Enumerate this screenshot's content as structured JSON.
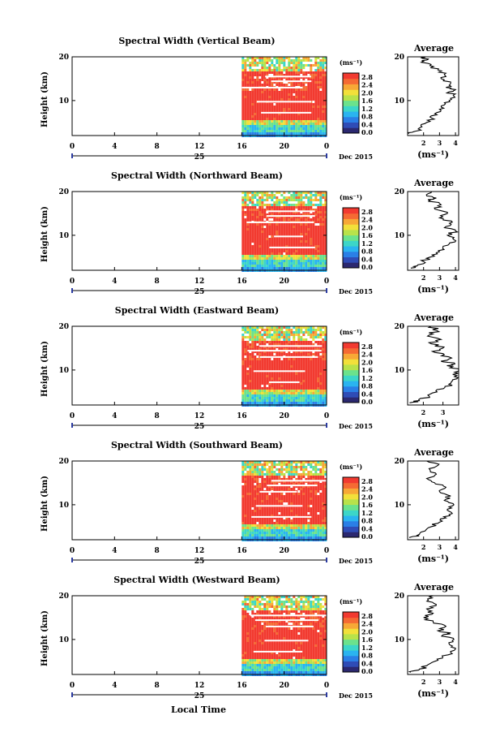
{
  "figure": {
    "xlabel": "Local Time",
    "day_label": "25",
    "month_label": "Dec 2015"
  },
  "colorbar_colors": [
    "#2b2870",
    "#2f4cb6",
    "#2a7fe6",
    "#2ab4f0",
    "#3cd6c8",
    "#6be28c",
    "#b8e24a",
    "#f2e03a",
    "#f7a836",
    "#f56a33",
    "#f23a30"
  ],
  "chart_data": [
    {
      "type": "heatmap",
      "title": "Spectral Width (Vertical Beam)",
      "ylabel": "Height (km)",
      "xticks": [
        "0",
        "4",
        "8",
        "12",
        "16",
        "20",
        "0"
      ],
      "yticks": [
        "10",
        "20"
      ],
      "xlim": [
        0,
        24
      ],
      "ylim": [
        2,
        20
      ],
      "data_start_hour": 16,
      "colorbar": {
        "unit": "(ms⁻¹)",
        "ticks": [
          "2.8",
          "2.4",
          "2.0",
          "1.6",
          "1.2",
          "0.8",
          "0.4",
          "0.0"
        ]
      },
      "average": {
        "title": "Average",
        "xlabel": "(ms⁻¹)",
        "xticks": [
          "2",
          "3",
          "4"
        ],
        "xlim": [
          1,
          4.2
        ],
        "yticks": [
          "10",
          "20"
        ],
        "profile": [
          [
            1.1,
            2.5
          ],
          [
            1.5,
            3
          ],
          [
            1.9,
            4
          ],
          [
            2.2,
            5
          ],
          [
            2.5,
            6
          ],
          [
            2.7,
            7
          ],
          [
            3.0,
            8
          ],
          [
            3.3,
            9
          ],
          [
            3.6,
            10
          ],
          [
            3.9,
            11
          ],
          [
            3.6,
            12
          ],
          [
            4.0,
            12.5
          ],
          [
            3.4,
            13
          ],
          [
            3.7,
            14
          ],
          [
            3.1,
            15
          ],
          [
            3.3,
            16
          ],
          [
            2.9,
            17
          ],
          [
            2.4,
            18
          ],
          [
            2.0,
            19
          ],
          [
            2.3,
            19.5
          ],
          [
            1.8,
            20
          ]
        ]
      }
    },
    {
      "type": "heatmap",
      "title": "Spectral Width (Northward Beam)",
      "ylabel": "Height (km)",
      "xticks": [
        "0",
        "4",
        "8",
        "12",
        "16",
        "20",
        "0"
      ],
      "yticks": [
        "10",
        "20"
      ],
      "xlim": [
        0,
        24
      ],
      "ylim": [
        2,
        20
      ],
      "data_start_hour": 16,
      "colorbar": {
        "unit": "(ms⁻¹)",
        "ticks": [
          "2.8",
          "2.4",
          "2.0",
          "1.6",
          "1.2",
          "0.8",
          "0.4",
          "0.0"
        ]
      },
      "average": {
        "title": "Average",
        "xlabel": "(ms⁻¹)",
        "xticks": [
          "2",
          "3",
          "4"
        ],
        "xlim": [
          1,
          4.2
        ],
        "yticks": [
          "10",
          "20"
        ],
        "profile": [
          [
            1.2,
            2.5
          ],
          [
            1.6,
            3
          ],
          [
            2.0,
            4
          ],
          [
            2.4,
            5
          ],
          [
            2.8,
            6
          ],
          [
            3.2,
            7
          ],
          [
            3.6,
            8
          ],
          [
            3.9,
            9
          ],
          [
            3.5,
            10
          ],
          [
            4.0,
            11
          ],
          [
            3.4,
            12
          ],
          [
            3.8,
            13
          ],
          [
            3.0,
            14
          ],
          [
            3.5,
            15
          ],
          [
            2.7,
            16
          ],
          [
            3.1,
            17
          ],
          [
            2.4,
            18
          ],
          [
            2.8,
            18.5
          ],
          [
            2.2,
            19
          ],
          [
            2.5,
            20
          ]
        ]
      }
    },
    {
      "type": "heatmap",
      "title": "Spectral Width (Eastward Beam)",
      "ylabel": "Height (km)",
      "xticks": [
        "0",
        "4",
        "8",
        "12",
        "16",
        "20",
        "0"
      ],
      "yticks": [
        "10",
        "20"
      ],
      "xlim": [
        0,
        24
      ],
      "ylim": [
        2,
        20
      ],
      "data_start_hour": 16,
      "colorbar": {
        "unit": "(ms⁻¹)",
        "ticks": [
          "2.8",
          "2.4",
          "2.0",
          "1.6",
          "1.2",
          "0.8",
          "0.4",
          "0.0"
        ]
      },
      "average": {
        "title": "Average",
        "xlabel": "(ms⁻¹)",
        "xticks": [
          "2",
          "3"
        ],
        "xlim": [
          1.2,
          3.8
        ],
        "yticks": [
          "10",
          "20"
        ],
        "profile": [
          [
            1.3,
            2.5
          ],
          [
            1.8,
            3
          ],
          [
            2.3,
            4
          ],
          [
            2.7,
            5
          ],
          [
            3.1,
            6
          ],
          [
            3.4,
            7
          ],
          [
            3.7,
            8
          ],
          [
            3.5,
            9
          ],
          [
            3.8,
            10
          ],
          [
            3.2,
            11
          ],
          [
            3.6,
            11.5
          ],
          [
            2.9,
            12
          ],
          [
            3.3,
            13
          ],
          [
            2.6,
            14
          ],
          [
            3.0,
            15
          ],
          [
            2.4,
            16
          ],
          [
            2.9,
            17
          ],
          [
            2.3,
            18
          ],
          [
            2.7,
            19
          ],
          [
            2.4,
            20
          ]
        ]
      }
    },
    {
      "type": "heatmap",
      "title": "Spectral Width (Southward Beam)",
      "ylabel": "Height (km)",
      "xticks": [
        "0",
        "4",
        "8",
        "12",
        "16",
        "20",
        "0"
      ],
      "yticks": [
        "10",
        "20"
      ],
      "xlim": [
        0,
        24
      ],
      "ylim": [
        2,
        20
      ],
      "data_start_hour": 16,
      "colorbar": {
        "unit": "(ms⁻¹)",
        "ticks": [
          "2.8",
          "2.4",
          "2.0",
          "1.6",
          "1.2",
          "0.8",
          "0.4",
          "0.0"
        ]
      },
      "average": {
        "title": "Average",
        "xlabel": "(ms⁻¹)",
        "xticks": [
          "2",
          "3",
          "4"
        ],
        "xlim": [
          1,
          4.2
        ],
        "yticks": [
          "10",
          "20"
        ],
        "profile": [
          [
            1.1,
            2.5
          ],
          [
            1.6,
            3
          ],
          [
            2.1,
            4
          ],
          [
            2.5,
            5
          ],
          [
            3.0,
            6
          ],
          [
            3.4,
            7
          ],
          [
            3.8,
            8
          ],
          [
            3.5,
            9
          ],
          [
            3.9,
            10
          ],
          [
            3.3,
            11
          ],
          [
            3.7,
            12
          ],
          [
            3.0,
            13
          ],
          [
            3.4,
            14
          ],
          [
            2.7,
            15
          ],
          [
            2.2,
            16
          ],
          [
            2.8,
            17
          ],
          [
            2.4,
            18
          ],
          [
            2.9,
            19
          ],
          [
            2.2,
            20
          ]
        ]
      }
    },
    {
      "type": "heatmap",
      "title": "Spectral Width (Westward Beam)",
      "ylabel": "Height (km)",
      "xticks": [
        "0",
        "4",
        "8",
        "12",
        "16",
        "20",
        "0"
      ],
      "yticks": [
        "10",
        "20"
      ],
      "xlim": [
        0,
        24
      ],
      "ylim": [
        2,
        20
      ],
      "data_start_hour": 16,
      "colorbar": {
        "unit": "(ms⁻¹)",
        "ticks": [
          "2.8",
          "2.4",
          "2.0",
          "1.6",
          "1.2",
          "0.8",
          "0.4",
          "0.0"
        ]
      },
      "average": {
        "title": "Average",
        "xlabel": "(ms⁻¹)",
        "xticks": [
          "2",
          "3",
          "4"
        ],
        "xlim": [
          1,
          4.2
        ],
        "yticks": [
          "10",
          "20"
        ],
        "profile": [
          [
            1.2,
            2.5
          ],
          [
            1.7,
            3
          ],
          [
            2.2,
            4
          ],
          [
            2.7,
            5
          ],
          [
            3.2,
            6
          ],
          [
            3.7,
            7
          ],
          [
            4.0,
            8
          ],
          [
            3.6,
            9
          ],
          [
            3.9,
            10
          ],
          [
            3.2,
            11
          ],
          [
            3.7,
            11.5
          ],
          [
            2.9,
            12
          ],
          [
            3.4,
            13
          ],
          [
            2.6,
            14
          ],
          [
            2.0,
            15
          ],
          [
            2.6,
            16
          ],
          [
            2.2,
            17
          ],
          [
            2.8,
            18
          ],
          [
            2.3,
            19
          ],
          [
            2.6,
            20
          ]
        ]
      }
    }
  ]
}
